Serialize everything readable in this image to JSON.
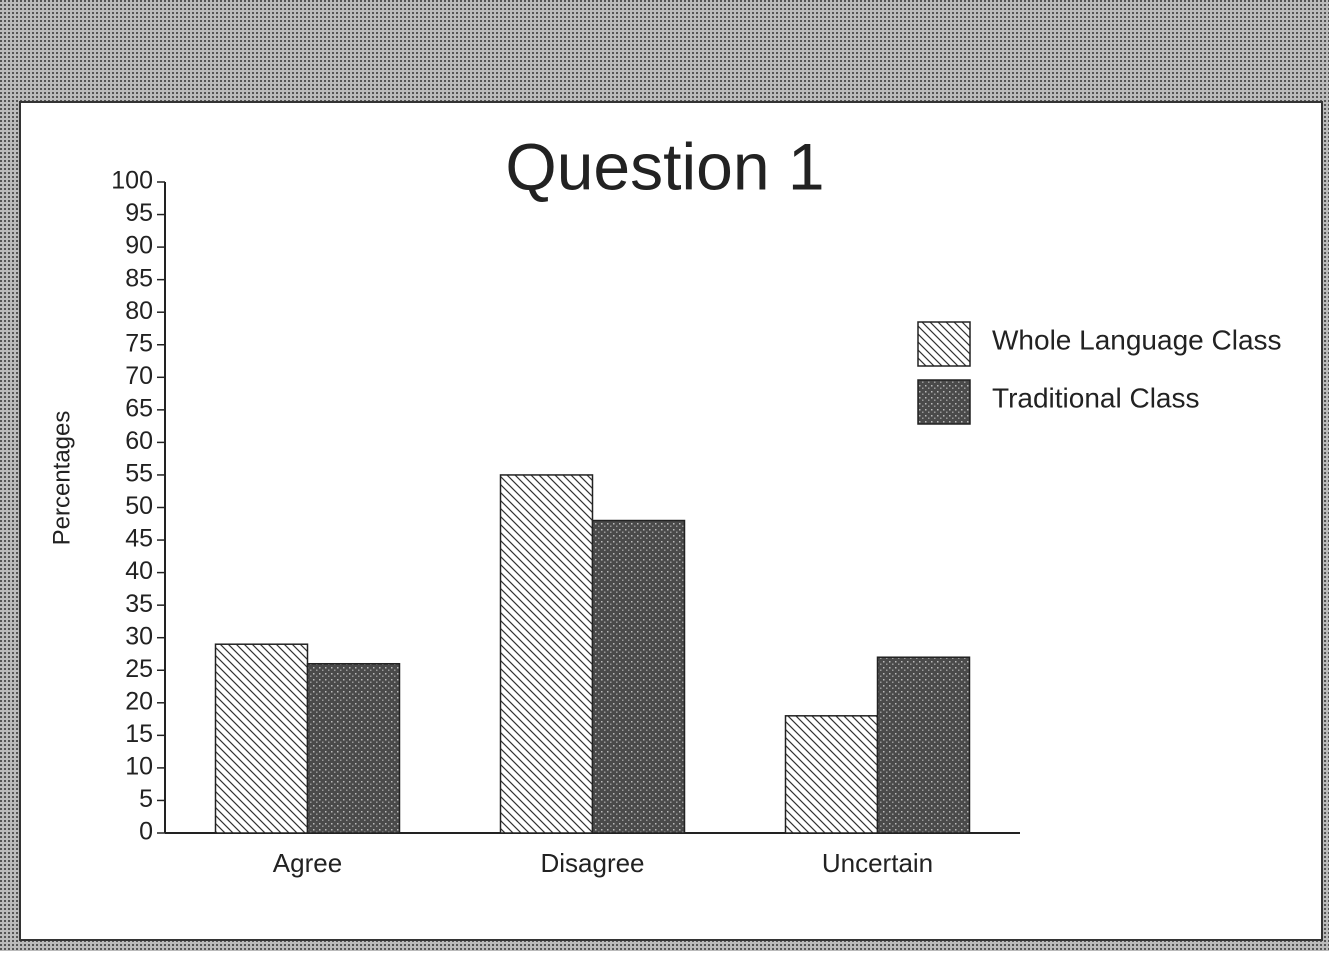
{
  "chart_data": {
    "type": "bar",
    "title": "Question 1",
    "y_label": "Percentages",
    "categories": [
      "Agree",
      "Disagree",
      "Uncertain"
    ],
    "series": [
      {
        "name": "Whole Language Class",
        "color": "#333333",
        "pattern": "hatch",
        "values": [
          29,
          55,
          18
        ]
      },
      {
        "name": "Traditional Class",
        "color": "#4a4a4a",
        "pattern": "stipple",
        "values": [
          26,
          48,
          27
        ]
      }
    ],
    "ylim": [
      0,
      100
    ],
    "yticks": [
      0,
      5,
      10,
      15,
      20,
      25,
      30,
      35,
      40,
      45,
      50,
      55,
      60,
      65,
      70,
      75,
      80,
      85,
      90,
      95,
      100
    ],
    "grid": false,
    "legend": "right"
  }
}
